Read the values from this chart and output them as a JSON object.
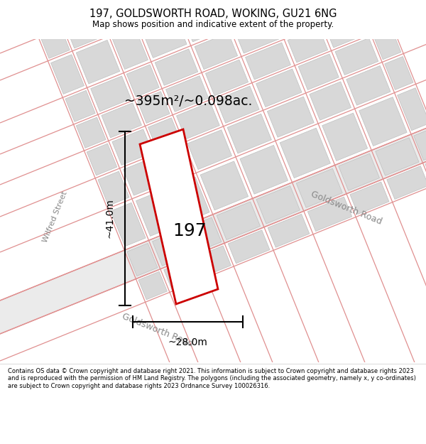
{
  "title_line1": "197, GOLDSWORTH ROAD, WOKING, GU21 6NG",
  "title_line2": "Map shows position and indicative extent of the property.",
  "area_text": "~395m²/~0.098ac.",
  "label_197": "197",
  "dim_width": "~28.0m",
  "dim_height": "~41.0m",
  "street_label_wilfred": "Wilfred Street",
  "street_label_gw_bottom": "Goldsworth Road",
  "street_label_gw_right": "Goldsworth Road",
  "footer_text": "Contains OS data © Crown copyright and database right 2021. This information is subject to Crown copyright and database rights 2023 and is reproduced with the permission of HM Land Registry. The polygons (including the associated geometry, namely x, y co-ordinates) are subject to Crown copyright and database rights 2023 Ordnance Survey 100026316.",
  "map_bg": "#f0f0f0",
  "road_line_color": "#e09090",
  "building_fill": "#d8d8d8",
  "building_edge": "#c0c0c0",
  "property_color": "#cc0000",
  "text_color": "#000000",
  "street_text_color": "#888888"
}
